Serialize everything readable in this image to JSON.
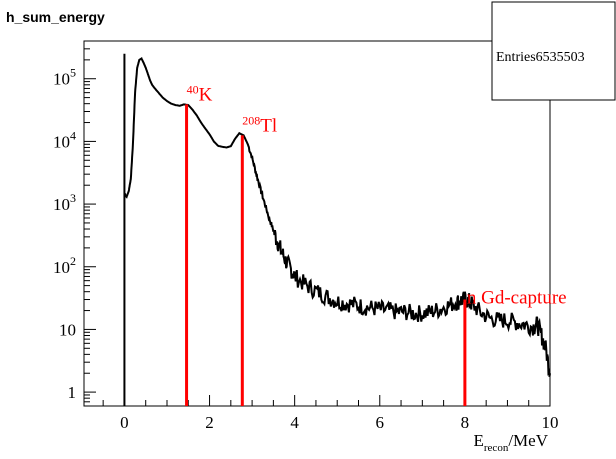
{
  "histogram_name": "h_sum_energy",
  "stats_box": {
    "label": "Entries",
    "value": "6535503"
  },
  "chart_data": {
    "type": "line",
    "title": "h_sum_energy",
    "xlabel_main": "E",
    "xlabel_sub": "recon",
    "xlabel_unit": "/MeV",
    "ylabel": "",
    "x_scale": "linear",
    "y_scale": "log",
    "xlim": [
      -0.95,
      10.0
    ],
    "ylim": [
      0.6,
      400000
    ],
    "grid": false,
    "x_ticks": [
      {
        "value": 0,
        "label": "0"
      },
      {
        "value": 2,
        "label": "2"
      },
      {
        "value": 4,
        "label": "4"
      },
      {
        "value": 6,
        "label": "6"
      },
      {
        "value": 8,
        "label": "8"
      },
      {
        "value": 10,
        "label": "10"
      }
    ],
    "y_ticks": [
      {
        "value": 1,
        "base": "1",
        "exp": ""
      },
      {
        "value": 10,
        "base": "10",
        "exp": ""
      },
      {
        "value": 100,
        "base": "10",
        "exp": "2"
      },
      {
        "value": 1000,
        "base": "10",
        "exp": "3"
      },
      {
        "value": 10000,
        "base": "10",
        "exp": "4"
      },
      {
        "value": 100000,
        "base": "10",
        "exp": "5"
      }
    ],
    "series": [
      {
        "color": "#000000",
        "x": [
          0.0,
          0.02,
          0.05,
          0.1,
          0.15,
          0.2,
          0.25,
          0.3,
          0.35,
          0.4,
          0.45,
          0.5,
          0.55,
          0.6,
          0.65,
          0.7,
          0.8,
          0.9,
          1.0,
          1.1,
          1.2,
          1.3,
          1.4,
          1.5,
          1.6,
          1.7,
          1.8,
          1.9,
          2.0,
          2.1,
          2.2,
          2.3,
          2.4,
          2.5,
          2.6,
          2.7,
          2.8,
          2.9,
          3.0,
          3.1,
          3.2,
          3.3,
          3.4,
          3.5,
          3.6,
          3.7,
          3.8,
          3.9,
          4.0,
          4.2,
          4.4,
          4.6,
          4.8,
          5.0,
          5.2,
          5.4,
          5.6,
          5.8,
          6.0,
          6.2,
          6.4,
          6.6,
          6.8,
          7.0,
          7.2,
          7.4,
          7.6,
          7.8,
          7.9,
          8.0,
          8.1,
          8.2,
          8.4,
          8.6,
          8.8,
          9.0,
          9.2,
          9.4,
          9.6,
          9.7,
          9.8,
          9.9,
          10.0
        ],
        "y": [
          250000,
          1400,
          1300,
          1600,
          2500,
          9000,
          60000,
          150000,
          200000,
          210000,
          180000,
          150000,
          120000,
          95000,
          80000,
          72000,
          60000,
          50000,
          44000,
          40000,
          38000,
          37000,
          39000,
          38000,
          32000,
          26000,
          20000,
          16000,
          13000,
          10000,
          8500,
          8200,
          8000,
          8400,
          11000,
          13500,
          12500,
          9000,
          5500,
          3000,
          1700,
          1000,
          600,
          380,
          250,
          170,
          120,
          95,
          70,
          55,
          45,
          38,
          32,
          28,
          26,
          25,
          23,
          22,
          21,
          20,
          19,
          19,
          18,
          18,
          19,
          21,
          24,
          27,
          29,
          30,
          28,
          24,
          18,
          15,
          14,
          14,
          13,
          12,
          11,
          12,
          8,
          5,
          2
        ]
      },
      {
        "color": "#ff0000",
        "x": [
          0.0,
          10.0
        ],
        "y": [
          0.0,
          0.0
        ]
      }
    ],
    "annotations": [
      {
        "name": "potassium",
        "x": 1.46,
        "y_top": 39000,
        "label": "K",
        "sup": "40",
        "color": "#ff0000"
      },
      {
        "name": "thallium",
        "x": 2.77,
        "y_top": 12500,
        "label": "Tl",
        "sup": "208",
        "color": "#ff0000"
      },
      {
        "name": "gd-capture",
        "x": 8.0,
        "y_top": 30,
        "label": "n Gd-capture",
        "sup": "",
        "color": "#ff0000"
      }
    ]
  }
}
